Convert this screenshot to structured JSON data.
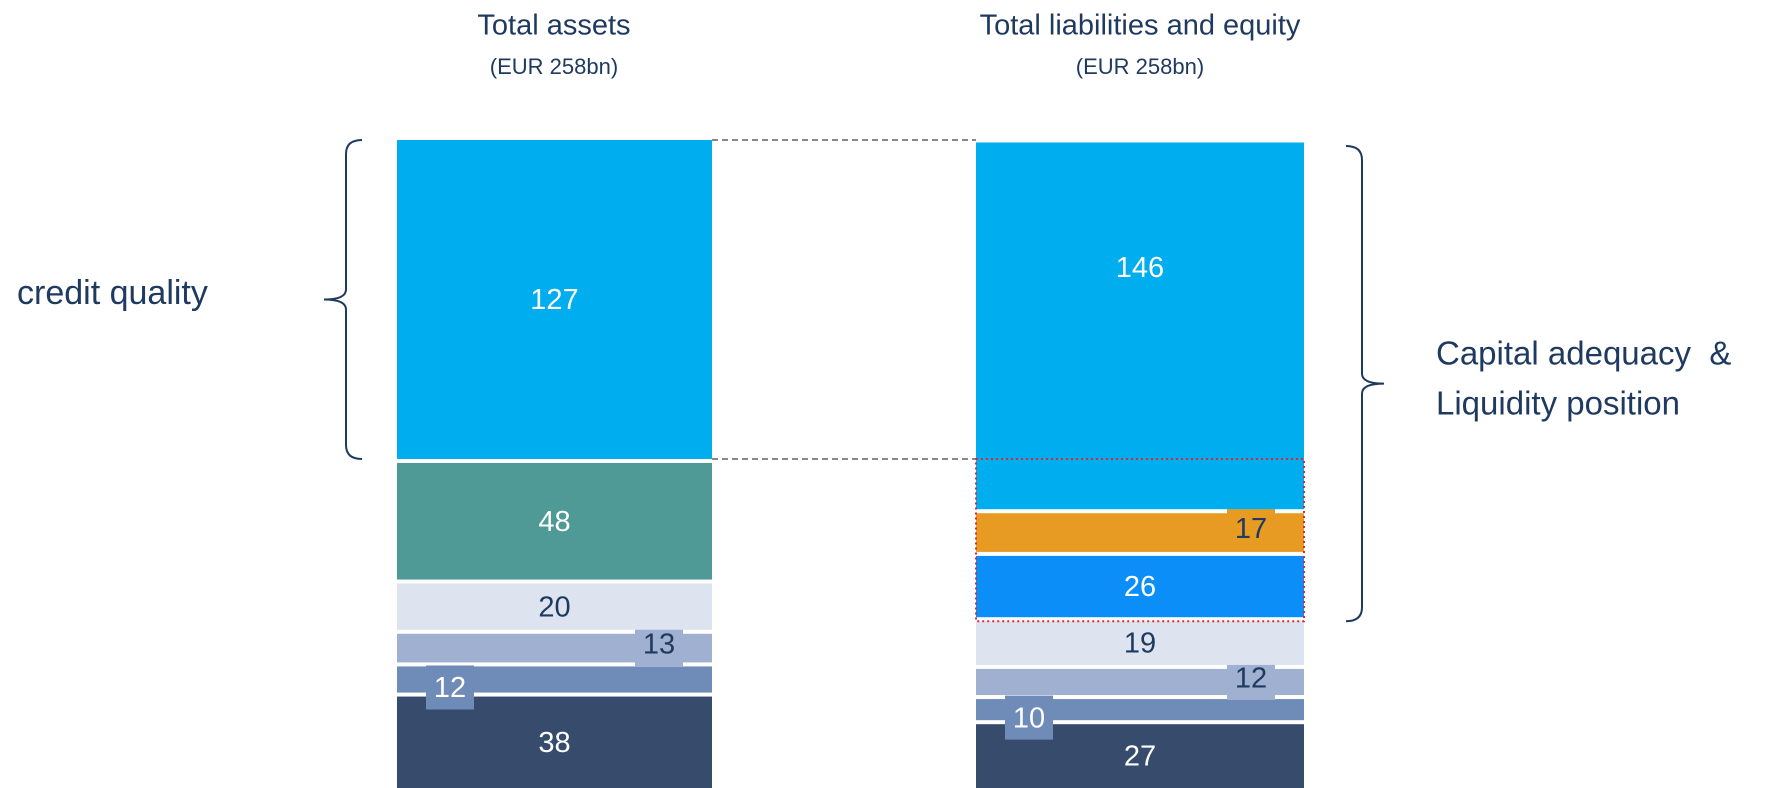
{
  "chart_data": {
    "type": "stacked_bar",
    "categories": [
      "Total assets",
      "Total liabilities and equity"
    ],
    "subtitles": [
      "(EUR 258bn)",
      "(EUR 258bn)"
    ],
    "stacks": [
      {
        "values": [
          38,
          12,
          13,
          20,
          48,
          127
        ],
        "colors": [
          "#374c6c",
          "#6f8bb8",
          "#9fb0d0",
          "#dde4ef",
          "#4f9996",
          "#00aeef"
        ]
      },
      {
        "values": [
          27,
          10,
          12,
          19,
          26,
          17,
          146
        ],
        "colors": [
          "#374c6c",
          "#6f8bb8",
          "#9fb0d0",
          "#dde4ef",
          "#0b8ef8",
          "#e89b22",
          "#00aeef"
        ]
      }
    ],
    "ylim": [
      0,
      258
    ],
    "annotations": [
      "credit quality",
      "Capital adequacy  &",
      "Liquidity position"
    ]
  }
}
